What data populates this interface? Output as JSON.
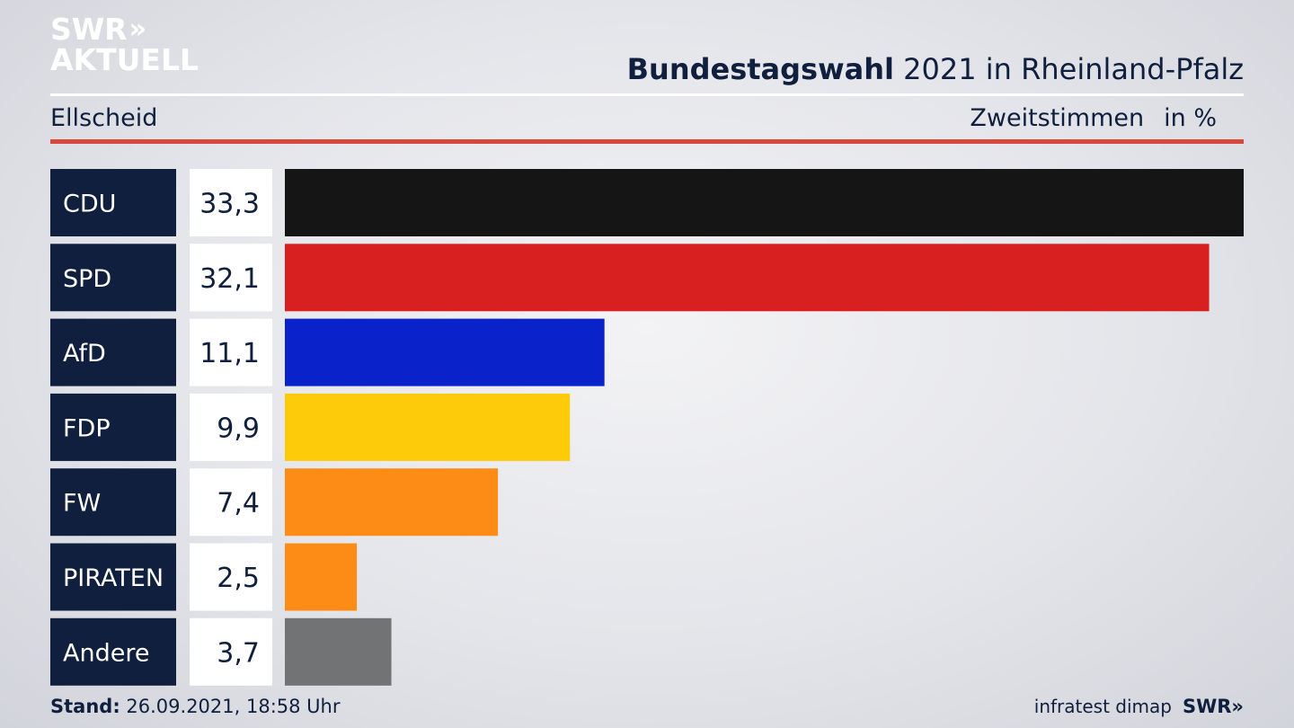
{
  "brand": {
    "line1": "SWR",
    "line2": "AKTUELL",
    "arrows": "»"
  },
  "header": {
    "title_bold": "Bundestagswahl",
    "title_rest": " 2021 in Rheinland-Pfalz",
    "subtitle": "Ellscheid",
    "measure": "Zweitstimmen",
    "unit": "in %"
  },
  "footer": {
    "stand_label": "Stand:",
    "stand_value": " 26.09.2021, 18:58 Uhr",
    "source": "infratest dimap",
    "source_brand": "SWR»"
  },
  "chart_data": {
    "type": "bar",
    "orientation": "horizontal",
    "title": "Bundestagswahl 2021 in Rheinland-Pfalz",
    "subtitle": "Ellscheid",
    "measure": "Zweitstimmen",
    "unit": "in %",
    "categories": [
      "CDU",
      "SPD",
      "AfD",
      "FDP",
      "FW",
      "PIRATEN",
      "Andere"
    ],
    "values": [
      33.3,
      32.1,
      11.1,
      9.9,
      7.4,
      2.5,
      3.7
    ],
    "labels": [
      "33,3",
      "32,1",
      "11,1",
      "9,9",
      "7,4",
      "2,5",
      "3,7"
    ],
    "colors": [
      "#151515",
      "#d92020",
      "#0a22c9",
      "#fecb0a",
      "#fd8c17",
      "#fd8c17",
      "#727375"
    ],
    "xlim": [
      0,
      33.3
    ],
    "grid": false,
    "legend": "none"
  }
}
